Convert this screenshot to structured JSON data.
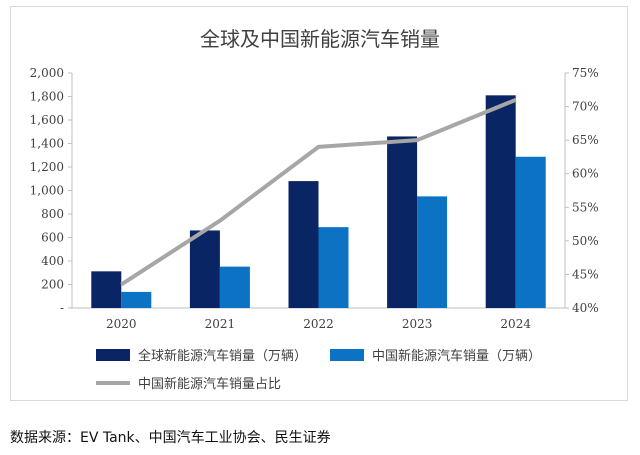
{
  "chart_data": {
    "type": "bar",
    "title": "全球及中国新能源汽车销量",
    "categories": [
      "2020",
      "2021",
      "2022",
      "2023",
      "2024"
    ],
    "series": [
      {
        "name": "全球新能源汽车销量（万辆）",
        "type": "bar",
        "axis": "left",
        "color": "#0a2564",
        "values": [
          312,
          660,
          1080,
          1460,
          1810
        ]
      },
      {
        "name": "中国新能源汽车销量（万辆）",
        "type": "bar",
        "axis": "left",
        "color": "#0b72c4",
        "values": [
          137,
          352,
          688,
          950,
          1287
        ]
      },
      {
        "name": "中国新能源汽车销量占比",
        "type": "line",
        "axis": "right",
        "color": "#a6a6a6",
        "values": [
          43.5,
          53.0,
          64.0,
          65.0,
          71.0
        ]
      }
    ],
    "y_left": {
      "ylim": [
        0,
        2000
      ],
      "ticks": [
        0,
        200,
        400,
        600,
        800,
        1000,
        1200,
        1400,
        1600,
        1800,
        2000
      ],
      "tick_labels": [
        "-",
        "200",
        "400",
        "600",
        "800",
        "1,000",
        "1,200",
        "1,400",
        "1,600",
        "1,800",
        "2,000"
      ]
    },
    "y_right": {
      "ylim": [
        40,
        75
      ],
      "ticks": [
        40,
        45,
        50,
        55,
        60,
        65,
        70,
        75
      ],
      "tick_labels": [
        "40%",
        "45%",
        "50%",
        "55%",
        "60%",
        "65%",
        "70%",
        "75%"
      ]
    },
    "grid": false,
    "legend_position": "bottom"
  },
  "source": "数据来源：EV Tank、中国汽车工业协会、民生证券"
}
